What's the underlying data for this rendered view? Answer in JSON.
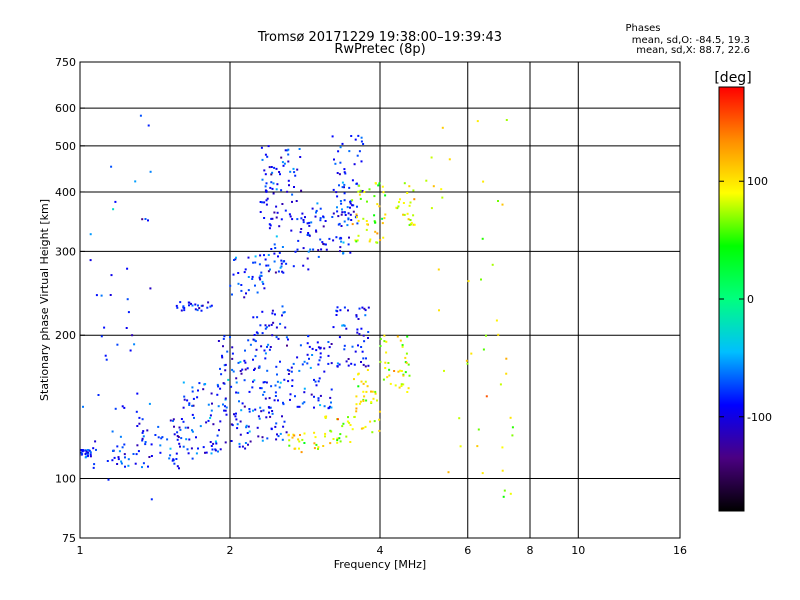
{
  "chart_data": {
    "type": "scatter",
    "title": "Tromsø 20171229 19:38:00–19:39:43",
    "subtitle": "RwPretec (8p)",
    "xlabel": "Frequency [MHz]",
    "ylabel": "Stationary phase Virtual Height [km]",
    "x_scale": "log",
    "y_scale": "log",
    "xlim": [
      1,
      16
    ],
    "ylim": [
      75,
      750
    ],
    "x_ticks": [
      1,
      2,
      4,
      6,
      8,
      10,
      16
    ],
    "x_tick_labels": [
      "1",
      "2",
      "4",
      "6",
      "8",
      "10",
      "16"
    ],
    "x_gridlines": [
      2,
      4,
      6,
      8,
      10
    ],
    "y_ticks": [
      75,
      100,
      200,
      300,
      400,
      500,
      600,
      750
    ],
    "y_tick_labels": [
      "75",
      "100",
      "200",
      "300",
      "400",
      "500",
      "600",
      "750"
    ],
    "y_gridlines": [
      100,
      200,
      300,
      400,
      500,
      600
    ],
    "grid": true,
    "stats": {
      "heading": "Phases",
      "line_o": "mean, sd,O: -84.5, 19.3",
      "line_x": "mean, sd,X:  88.7, 22.6"
    },
    "colorbar": {
      "label": "[deg]",
      "range": [
        -180,
        180
      ],
      "ticks": [
        100,
        0,
        -100
      ],
      "tick_labels": [
        "100",
        "0",
        "-100"
      ],
      "colors": [
        "#000000",
        "#4b0082",
        "#0000ff",
        "#00bfff",
        "#00ff7f",
        "#00ff00",
        "#ffff00",
        "#ff8c00",
        "#ff0000"
      ]
    },
    "series": [
      {
        "mode": "O",
        "phase_mean": -84.5,
        "phase_sd": 19.3,
        "ranges": [
          {
            "f": [
              1.0,
              1.05
            ],
            "h": [
              110,
              115
            ]
          },
          {
            "f": [
              1.05,
              1.3
            ],
            "h": [
              105,
              120
            ]
          },
          {
            "f": [
              1.3,
              1.6
            ],
            "h": [
              105,
              135
            ]
          },
          {
            "f": [
              1.6,
              1.9
            ],
            "h": [
              110,
              160
            ]
          },
          {
            "f": [
              1.9,
              2.2
            ],
            "h": [
              115,
              200
            ]
          },
          {
            "f": [
              2.2,
              2.6
            ],
            "h": [
              120,
              230
            ]
          },
          {
            "f": [
              2.6,
              3.2
            ],
            "h": [
              140,
              200
            ]
          },
          {
            "f": [
              3.2,
              3.8
            ],
            "h": [
              170,
              230
            ]
          },
          {
            "f": [
              1.55,
              1.85
            ],
            "h": [
              225,
              235
            ]
          },
          {
            "f": [
              2.0,
              2.4
            ],
            "h": [
              240,
              300
            ]
          },
          {
            "f": [
              2.4,
              2.9
            ],
            "h": [
              270,
              360
            ]
          },
          {
            "f": [
              2.9,
              3.5
            ],
            "h": [
              290,
              380
            ]
          },
          {
            "f": [
              2.3,
              2.8
            ],
            "h": [
              350,
              500
            ]
          },
          {
            "f": [
              3.2,
              3.7
            ],
            "h": [
              340,
              530
            ]
          },
          {
            "f": [
              1.0,
              1.4
            ],
            "h": [
              90,
              600
            ]
          }
        ]
      },
      {
        "mode": "X",
        "phase_mean": 88.7,
        "phase_sd": 22.6,
        "ranges": [
          {
            "f": [
              2.6,
              3.1
            ],
            "h": [
              113,
              125
            ]
          },
          {
            "f": [
              3.1,
              3.5
            ],
            "h": [
              118,
              135
            ]
          },
          {
            "f": [
              3.5,
              4.0
            ],
            "h": [
              125,
              170
            ]
          },
          {
            "f": [
              3.5,
              4.1
            ],
            "h": [
              310,
              420
            ]
          },
          {
            "f": [
              4.0,
              4.6
            ],
            "h": [
              150,
              200
            ]
          },
          {
            "f": [
              4.3,
              4.7
            ],
            "h": [
              340,
              420
            ]
          },
          {
            "f": [
              4.9,
              7.5
            ],
            "h": [
              90,
              600
            ]
          }
        ]
      }
    ]
  }
}
